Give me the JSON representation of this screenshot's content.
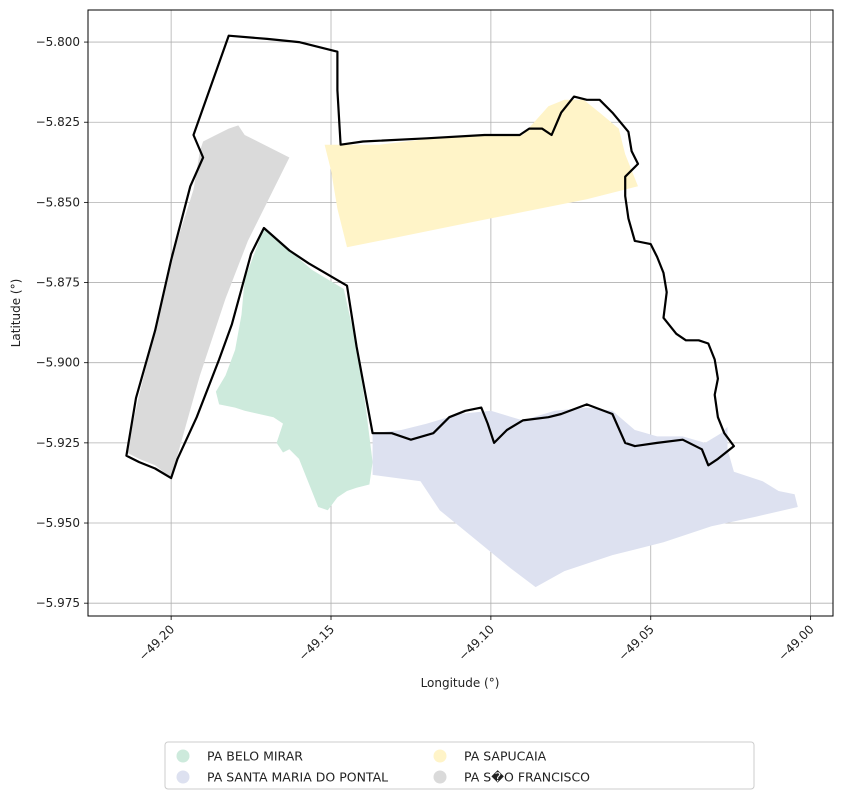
{
  "chart_data": {
    "type": "map",
    "xlabel": "Longitude (°)",
    "ylabel": "Latitude (°)",
    "xlim": [
      -49.226,
      -48.993
    ],
    "ylim": [
      -5.979,
      -5.79
    ],
    "grid": true,
    "x_ticks": [
      {
        "value": -49.2,
        "label": "−49.20"
      },
      {
        "value": -49.15,
        "label": "−49.15"
      },
      {
        "value": -49.1,
        "label": "−49.10"
      },
      {
        "value": -49.05,
        "label": "−49.05"
      },
      {
        "value": -49.0,
        "label": "−49.00"
      }
    ],
    "y_ticks": [
      {
        "value": -5.8,
        "label": "−5.800"
      },
      {
        "value": -5.825,
        "label": "−5.825"
      },
      {
        "value": -5.85,
        "label": "−5.850"
      },
      {
        "value": -5.875,
        "label": "−5.875"
      },
      {
        "value": -5.9,
        "label": "−5.900"
      },
      {
        "value": -5.925,
        "label": "−5.925"
      },
      {
        "value": -5.95,
        "label": "−5.950"
      },
      {
        "value": -5.975,
        "label": "−5.975"
      }
    ],
    "legend_placement": "bottom-center",
    "regions": [
      {
        "name": "PA BELO MIRAR",
        "color": "#cdeadc",
        "polygon": [
          [
            -49.171,
            -5.858
          ],
          [
            -49.163,
            -5.865
          ],
          [
            -49.156,
            -5.871
          ],
          [
            -49.146,
            -5.877
          ],
          [
            -49.142,
            -5.895
          ],
          [
            -49.139,
            -5.915
          ],
          [
            -49.137,
            -5.931
          ],
          [
            -49.138,
            -5.938
          ],
          [
            -49.142,
            -5.939
          ],
          [
            -49.145,
            -5.94
          ],
          [
            -49.148,
            -5.942
          ],
          [
            -49.151,
            -5.946
          ],
          [
            -49.154,
            -5.945
          ],
          [
            -49.16,
            -5.93
          ],
          [
            -49.163,
            -5.927
          ],
          [
            -49.165,
            -5.928
          ],
          [
            -49.167,
            -5.925
          ],
          [
            -49.166,
            -5.922
          ],
          [
            -49.165,
            -5.919
          ],
          [
            -49.168,
            -5.917
          ],
          [
            -49.177,
            -5.915
          ],
          [
            -49.18,
            -5.914
          ],
          [
            -49.185,
            -5.913
          ],
          [
            -49.186,
            -5.909
          ],
          [
            -49.183,
            -5.904
          ],
          [
            -49.18,
            -5.896
          ],
          [
            -49.178,
            -5.885
          ],
          [
            -49.177,
            -5.874
          ]
        ]
      },
      {
        "name": "PA SANTA MARIA DO PONTAL",
        "color": "#dde1f0",
        "polygon": [
          [
            -49.137,
            -5.922
          ],
          [
            -49.128,
            -5.921
          ],
          [
            -49.12,
            -5.919
          ],
          [
            -49.11,
            -5.916
          ],
          [
            -49.1,
            -5.915
          ],
          [
            -49.09,
            -5.918
          ],
          [
            -49.08,
            -5.915
          ],
          [
            -49.07,
            -5.914
          ],
          [
            -49.062,
            -5.915
          ],
          [
            -49.055,
            -5.921
          ],
          [
            -49.048,
            -5.923
          ],
          [
            -49.04,
            -5.923
          ],
          [
            -49.033,
            -5.925
          ],
          [
            -49.028,
            -5.922
          ],
          [
            -49.026,
            -5.92
          ],
          [
            -49.026,
            -5.927
          ],
          [
            -49.024,
            -5.934
          ],
          [
            -49.015,
            -5.937
          ],
          [
            -49.01,
            -5.94
          ],
          [
            -49.005,
            -5.941
          ],
          [
            -49.004,
            -5.945
          ],
          [
            -49.017,
            -5.948
          ],
          [
            -49.031,
            -5.951
          ],
          [
            -49.046,
            -5.956
          ],
          [
            -49.062,
            -5.96
          ],
          [
            -49.077,
            -5.965
          ],
          [
            -49.086,
            -5.97
          ],
          [
            -49.094,
            -5.964
          ],
          [
            -49.105,
            -5.955
          ],
          [
            -49.116,
            -5.946
          ],
          [
            -49.122,
            -5.937
          ],
          [
            -49.137,
            -5.935
          ]
        ]
      },
      {
        "name": "PA SAPUCAIA",
        "color": "#fff4c8",
        "polygon": [
          [
            -49.152,
            -5.832
          ],
          [
            -49.135,
            -5.832
          ],
          [
            -49.118,
            -5.83
          ],
          [
            -49.102,
            -5.829
          ],
          [
            -49.09,
            -5.829
          ],
          [
            -49.082,
            -5.82
          ],
          [
            -49.077,
            -5.818
          ],
          [
            -49.071,
            -5.818
          ],
          [
            -49.066,
            -5.822
          ],
          [
            -49.06,
            -5.827
          ],
          [
            -49.058,
            -5.835
          ],
          [
            -49.056,
            -5.84
          ],
          [
            -49.054,
            -5.845
          ],
          [
            -49.07,
            -5.849
          ],
          [
            -49.09,
            -5.853
          ],
          [
            -49.11,
            -5.857
          ],
          [
            -49.13,
            -5.861
          ],
          [
            -49.145,
            -5.864
          ],
          [
            -49.148,
            -5.852
          ],
          [
            -49.15,
            -5.84
          ]
        ]
      },
      {
        "name": "PA S�O FRANCISCO",
        "color": "#dadada",
        "polygon": [
          [
            -49.19,
            -5.831
          ],
          [
            -49.186,
            -5.829
          ],
          [
            -49.182,
            -5.827
          ],
          [
            -49.179,
            -5.826
          ],
          [
            -49.177,
            -5.829
          ],
          [
            -49.163,
            -5.836
          ],
          [
            -49.176,
            -5.862
          ],
          [
            -49.183,
            -5.88
          ],
          [
            -49.191,
            -5.904
          ],
          [
            -49.2,
            -5.936
          ],
          [
            -49.205,
            -5.932
          ],
          [
            -49.21,
            -5.93
          ],
          [
            -49.214,
            -5.928
          ],
          [
            -49.21,
            -5.91
          ],
          [
            -49.205,
            -5.89
          ],
          [
            -49.2,
            -5.868
          ],
          [
            -49.193,
            -5.846
          ],
          [
            -49.191,
            -5.834
          ]
        ]
      }
    ],
    "outline_polygons": [
      [
        [
          -49.182,
          -5.798
        ],
        [
          -49.17,
          -5.799
        ],
        [
          -49.16,
          -5.8
        ],
        [
          -49.148,
          -5.803
        ],
        [
          -49.148,
          -5.815
        ],
        [
          -49.147,
          -5.832
        ],
        [
          -49.14,
          -5.831
        ],
        [
          -49.12,
          -5.83
        ],
        [
          -49.102,
          -5.829
        ],
        [
          -49.091,
          -5.829
        ],
        [
          -49.088,
          -5.827
        ],
        [
          -49.084,
          -5.827
        ],
        [
          -49.081,
          -5.829
        ],
        [
          -49.078,
          -5.822
        ],
        [
          -49.074,
          -5.817
        ],
        [
          -49.07,
          -5.818
        ],
        [
          -49.066,
          -5.818
        ],
        [
          -49.062,
          -5.822
        ],
        [
          -49.057,
          -5.828
        ],
        [
          -49.056,
          -5.834
        ],
        [
          -49.054,
          -5.838
        ],
        [
          -49.058,
          -5.842
        ],
        [
          -49.058,
          -5.848
        ],
        [
          -49.057,
          -5.855
        ],
        [
          -49.055,
          -5.862
        ],
        [
          -49.05,
          -5.863
        ],
        [
          -49.048,
          -5.867
        ],
        [
          -49.046,
          -5.872
        ],
        [
          -49.045,
          -5.878
        ],
        [
          -49.046,
          -5.886
        ],
        [
          -49.042,
          -5.891
        ],
        [
          -49.039,
          -5.893
        ],
        [
          -49.035,
          -5.893
        ],
        [
          -49.032,
          -5.894
        ],
        [
          -49.03,
          -5.899
        ],
        [
          -49.029,
          -5.905
        ],
        [
          -49.03,
          -5.91
        ],
        [
          -49.029,
          -5.917
        ],
        [
          -49.027,
          -5.922
        ],
        [
          -49.024,
          -5.926
        ],
        [
          -49.029,
          -5.93
        ],
        [
          -49.032,
          -5.932
        ],
        [
          -49.034,
          -5.927
        ],
        [
          -49.04,
          -5.924
        ],
        [
          -49.048,
          -5.925
        ],
        [
          -49.055,
          -5.926
        ],
        [
          -49.058,
          -5.925
        ],
        [
          -49.062,
          -5.916
        ],
        [
          -49.07,
          -5.913
        ],
        [
          -49.078,
          -5.916
        ],
        [
          -49.082,
          -5.917
        ],
        [
          -49.09,
          -5.918
        ],
        [
          -49.095,
          -5.921
        ],
        [
          -49.099,
          -5.925
        ],
        [
          -49.101,
          -5.919
        ],
        [
          -49.103,
          -5.914
        ],
        [
          -49.108,
          -5.915
        ],
        [
          -49.113,
          -5.917
        ],
        [
          -49.118,
          -5.922
        ],
        [
          -49.125,
          -5.924
        ],
        [
          -49.131,
          -5.922
        ],
        [
          -49.137,
          -5.922
        ],
        [
          -49.142,
          -5.895
        ],
        [
          -49.145,
          -5.876
        ],
        [
          -49.157,
          -5.869
        ],
        [
          -49.163,
          -5.865
        ],
        [
          -49.171,
          -5.858
        ],
        [
          -49.175,
          -5.866
        ],
        [
          -49.178,
          -5.877
        ],
        [
          -49.181,
          -5.888
        ],
        [
          -49.185,
          -5.899
        ],
        [
          -49.192,
          -5.917
        ],
        [
          -49.198,
          -5.93
        ],
        [
          -49.2,
          -5.936
        ],
        [
          -49.205,
          -5.933
        ],
        [
          -49.21,
          -5.931
        ],
        [
          -49.214,
          -5.929
        ],
        [
          -49.211,
          -5.911
        ],
        [
          -49.205,
          -5.89
        ],
        [
          -49.2,
          -5.868
        ],
        [
          -49.194,
          -5.845
        ],
        [
          -49.19,
          -5.836
        ],
        [
          -49.193,
          -5.829
        ],
        [
          -49.182,
          -5.798
        ]
      ]
    ]
  }
}
